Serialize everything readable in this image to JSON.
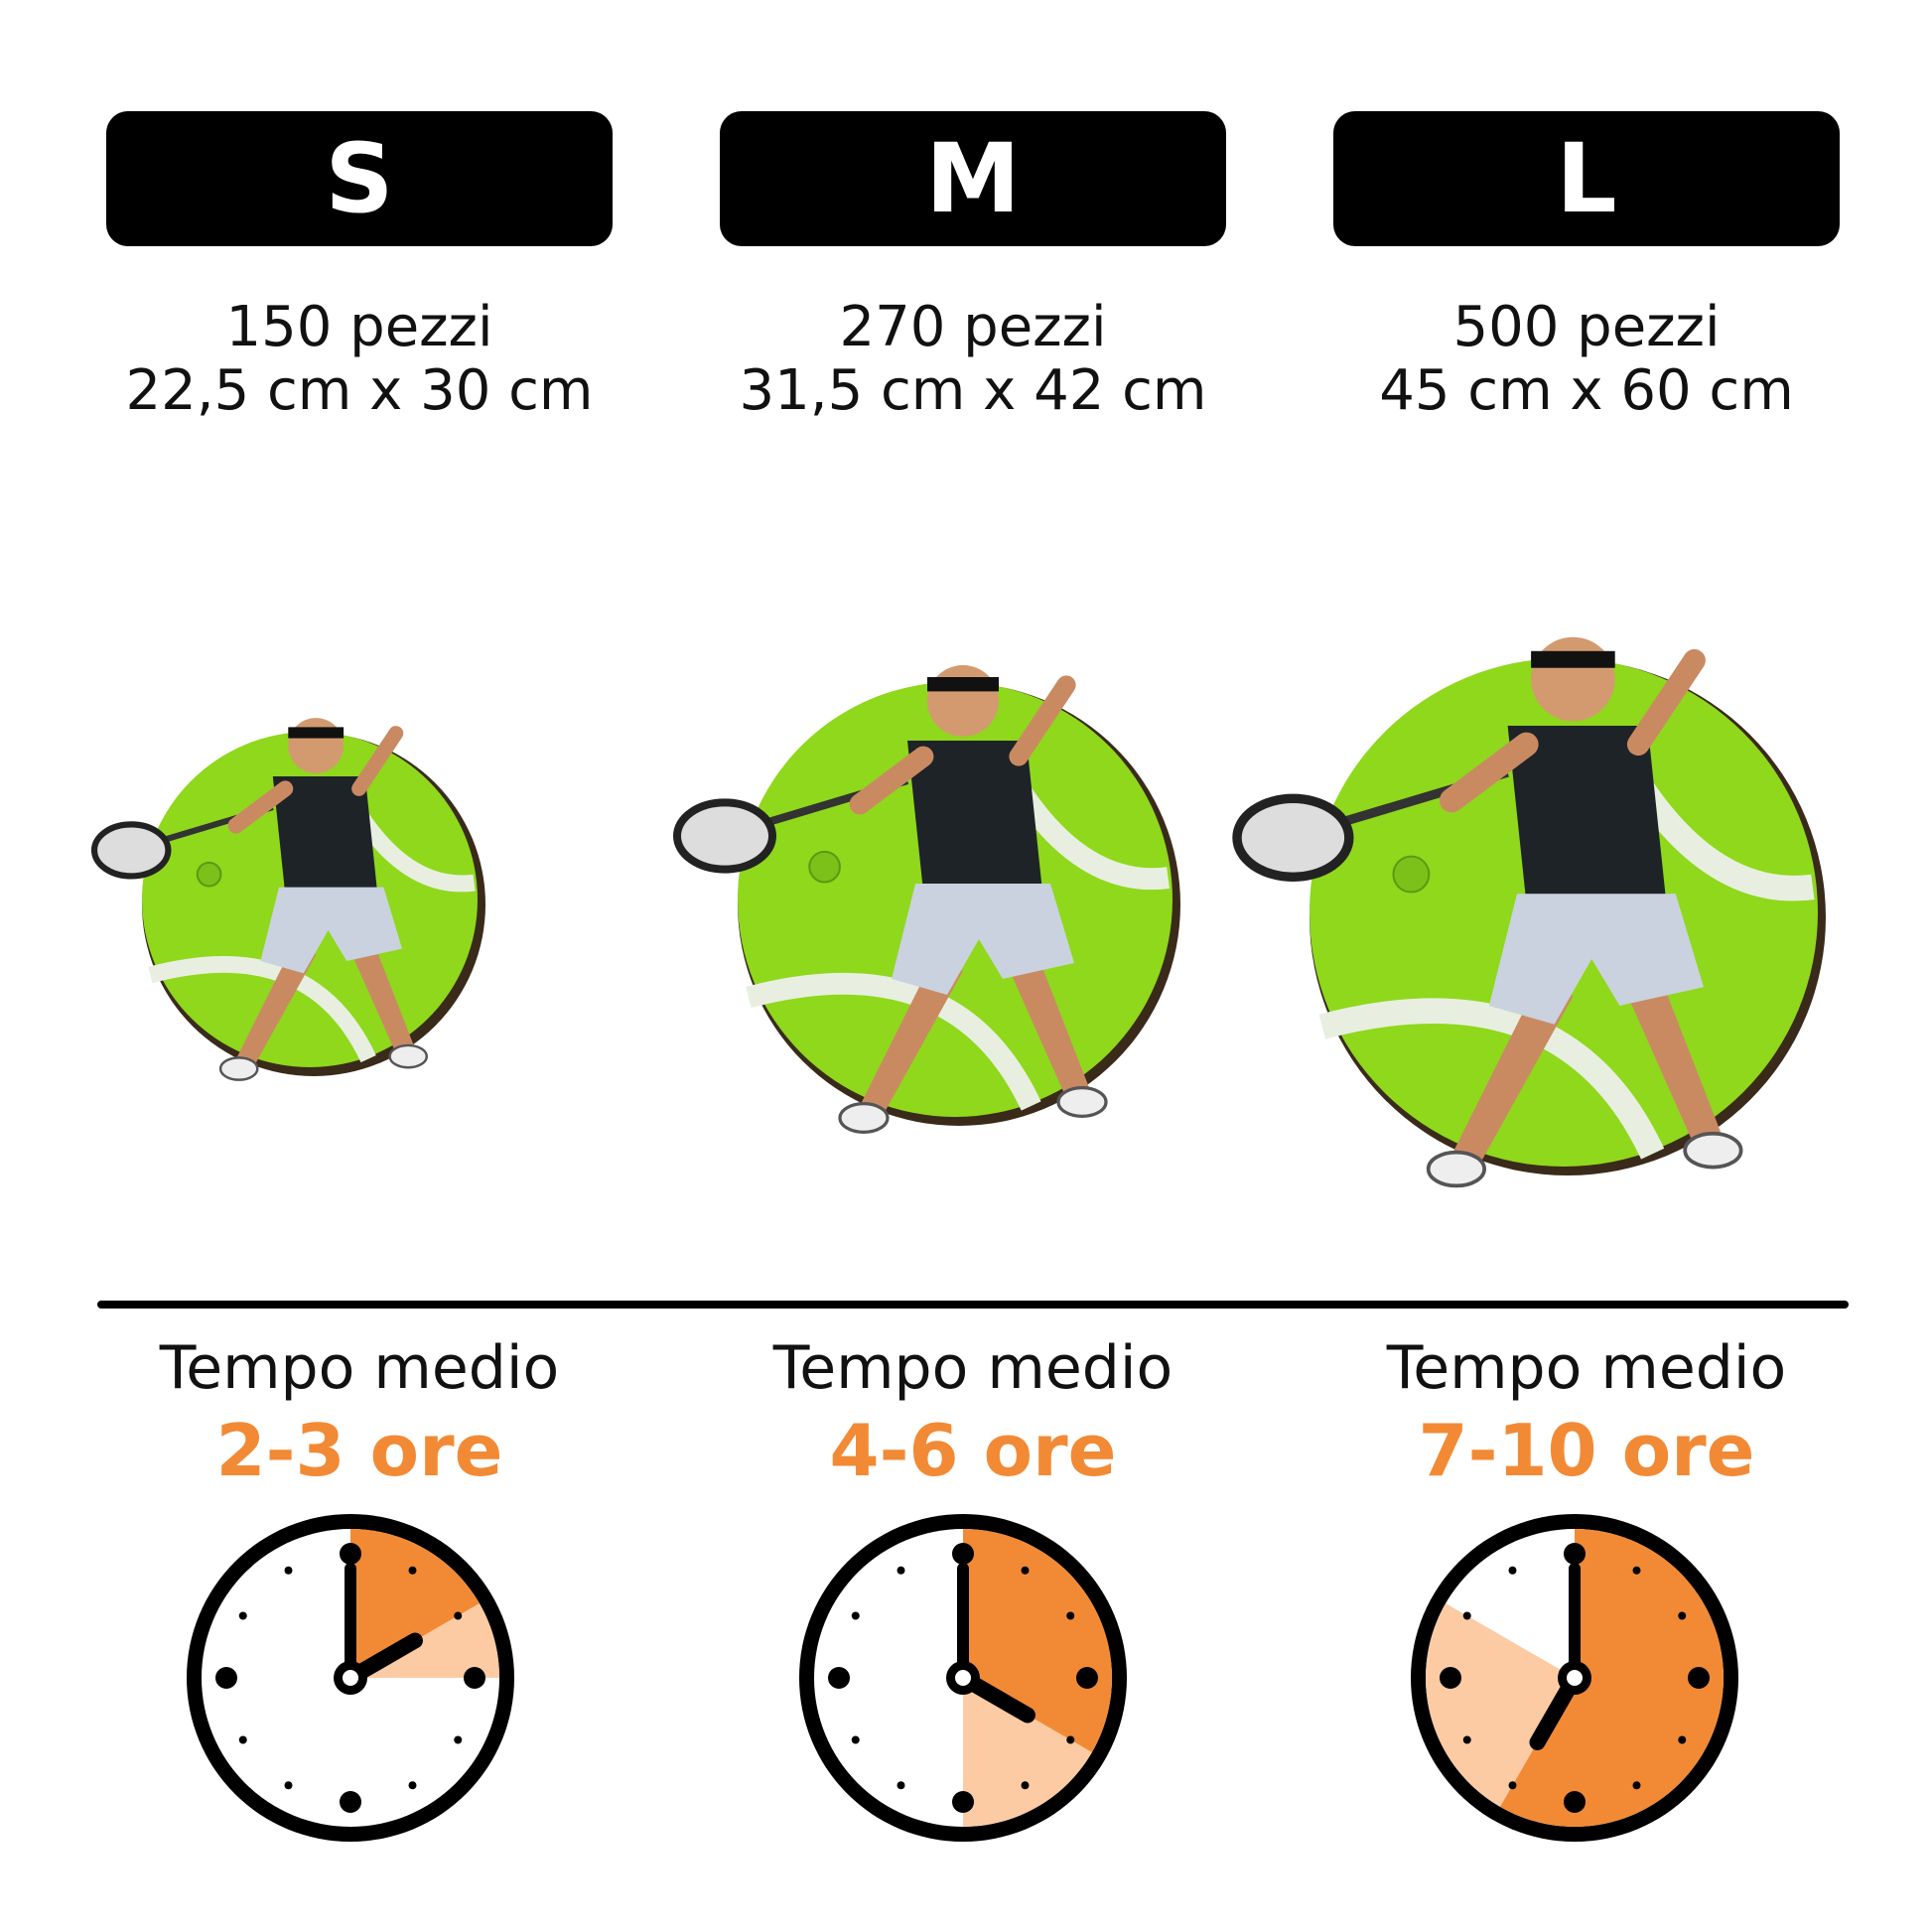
{
  "sizes": [
    {
      "label": "S",
      "pieces": "150 pezzi",
      "dimensions": "22,5 cm x 30 cm",
      "time_label": "Tempo medio",
      "time": "2-3 ore",
      "clock": {
        "hour_hand": 2,
        "min_hours": 2,
        "max_hours": 3
      }
    },
    {
      "label": "M",
      "pieces": "270 pezzi",
      "dimensions": "31,5 cm x 42 cm",
      "time_label": "Tempo medio",
      "time": "4-6 ore",
      "clock": {
        "hour_hand": 4,
        "min_hours": 4,
        "max_hours": 6
      }
    },
    {
      "label": "L",
      "pieces": "500 pezzi",
      "dimensions": "45 cm x 60 cm",
      "time_label": "Tempo medio",
      "time": "7-10 ore",
      "clock": {
        "hour_hand": 7,
        "min_hours": 7,
        "max_hours": 10
      }
    }
  ],
  "colors": {
    "accent": "#f28a35",
    "accent_light": "#fccba4",
    "ball": "#8fd81c",
    "badge": "#000000"
  }
}
